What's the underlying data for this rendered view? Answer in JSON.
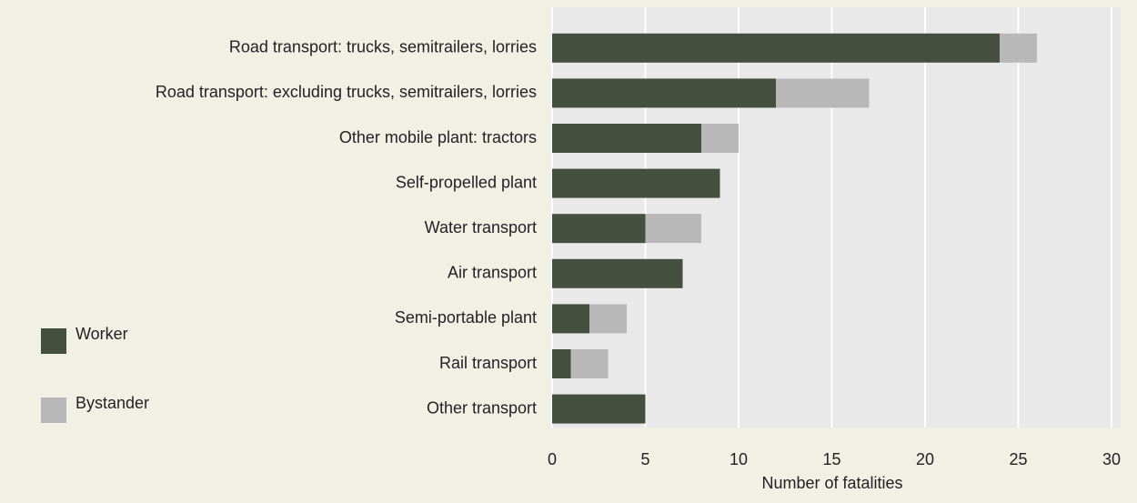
{
  "chart_data": {
    "type": "stacked_barh",
    "categories": [
      "Road transport: trucks, semitrailers, lorries",
      "Road transport: excluding trucks, semitrailers, lorries",
      "Other mobile plant: tractors",
      "Self-propelled plant",
      "Water transport",
      "Air transport",
      "Semi-portable plant",
      "Rail transport",
      "Other transport"
    ],
    "series": [
      {
        "name": "Worker",
        "color": "#454f3e",
        "values": [
          24,
          12,
          8,
          9,
          5,
          7,
          2,
          1,
          5
        ]
      },
      {
        "name": "Bystander",
        "color": "#b8b8b8",
        "values": [
          2,
          5,
          2,
          0,
          3,
          0,
          2,
          2,
          0
        ]
      }
    ],
    "xlabel": "Number of fatalities",
    "xlim": [
      0,
      30
    ],
    "xticks": [
      0,
      5,
      10,
      15,
      20,
      25,
      30
    ],
    "grid": true,
    "legend": "left"
  }
}
